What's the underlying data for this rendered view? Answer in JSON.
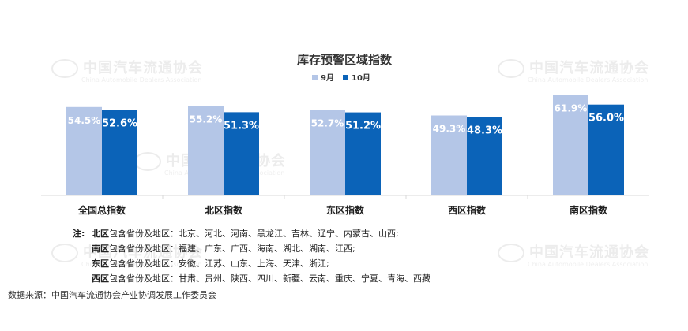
{
  "chart_data": {
    "type": "bar",
    "title": "库存预警区域指数",
    "categories": [
      "全国总指数",
      "北区指数",
      "东区指数",
      "西区指数",
      "南区指数"
    ],
    "series": [
      {
        "name": "9月",
        "values": [
          54.5,
          55.2,
          52.7,
          49.3,
          61.9
        ],
        "labels": [
          "54.5%",
          "55.2%",
          "52.7%",
          "49.3%",
          "61.9%"
        ],
        "color": "#b4c6e7"
      },
      {
        "name": "10月",
        "values": [
          52.6,
          51.3,
          51.2,
          48.3,
          56.0
        ],
        "labels": [
          "52.6%",
          "51.3%",
          "51.2%",
          "48.3%",
          "56.0%"
        ],
        "color": "#0b63b8"
      }
    ],
    "ylim": [
      0,
      68
    ],
    "legend": "top-center",
    "grid": false
  },
  "notes": {
    "prefix": "注:",
    "rows": [
      {
        "region": "北区",
        "text": "包含省份及地区：北京、河北、河南、黑龙江、吉林、辽宁、内蒙古、山西;"
      },
      {
        "region": "南区",
        "text": "包含省份及地区：福建、广东、广西、海南、湖北、湖南、江西;"
      },
      {
        "region": "东区",
        "text": "包含省份及地区：安徽、江苏、山东、上海、天津、浙江;"
      },
      {
        "region": "西区",
        "text": "包含省份及地区：甘肃、贵州、陕西、四川、新疆、云南、重庆、宁夏、青海、西藏"
      }
    ]
  },
  "source": "数据来源：中国汽车流通协会产业协调发展工作委员会",
  "watermark": {
    "cn": "中国汽车流通协会",
    "en": "China Automobile Dealers Association"
  }
}
